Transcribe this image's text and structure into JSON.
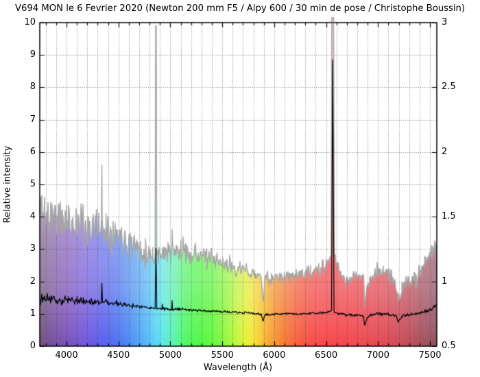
{
  "chart_data": {
    "type": "line",
    "title": "V694 MON le 6 Fevrier 2020 (Newton 200 mm F5 / Alpy 600 / 30 min de pose / Christophe Boussin)",
    "xlabel": "Wavelength (Å)",
    "ylabel_left": "Relative intensity",
    "x_range": [
      3742,
      7566
    ],
    "y_left_range": [
      0,
      10
    ],
    "y_right_range": [
      0.5,
      3
    ],
    "x_major_ticks": [
      4000,
      4500,
      5000,
      5500,
      6000,
      6500,
      7000,
      7500
    ],
    "x_minor_tick_step": 100,
    "y_left_ticks": [
      0,
      1,
      2,
      3,
      4,
      5,
      6,
      7,
      8,
      9,
      10
    ],
    "y_right_ticks": [
      0.5,
      1,
      1.5,
      2,
      2.5,
      3
    ],
    "grid": {
      "style": "dotted",
      "vertical_step_angstrom": 100,
      "horizontal_step_left_units": 1,
      "color": "#555555"
    },
    "emission_lines_angstrom": {
      "H_gamma": 4340,
      "H_beta": 4861,
      "He_I": 5017,
      "H_alpha": 6563
    },
    "absorption_features_angstrom": {
      "Na_D": 5892,
      "telluric_O2_B_band": 6870,
      "telluric_H2O": 7195
    },
    "noise_seed": 11,
    "fade_overlay": {
      "color": "#f3f3f3",
      "top_alpha": 0.72,
      "mid_alpha": 0.5,
      "bottom_alpha": 0.0
    },
    "rainbow_fill_stops": [
      [
        3742,
        "#6e4e79"
      ],
      [
        3850,
        "#74509a"
      ],
      [
        3950,
        "#784fb0"
      ],
      [
        4050,
        "#7950c4"
      ],
      [
        4150,
        "#7354d8"
      ],
      [
        4250,
        "#6659e6"
      ],
      [
        4350,
        "#585fee"
      ],
      [
        4450,
        "#4f6af2"
      ],
      [
        4550,
        "#4a7ef4"
      ],
      [
        4650,
        "#4c96f6"
      ],
      [
        4750,
        "#52b2f8"
      ],
      [
        4850,
        "#58d2f8"
      ],
      [
        4920,
        "#5ae8ea"
      ],
      [
        5000,
        "#58f2c2"
      ],
      [
        5080,
        "#54f88c"
      ],
      [
        5160,
        "#4ff85e"
      ],
      [
        5280,
        "#52f844"
      ],
      [
        5400,
        "#62f83e"
      ],
      [
        5520,
        "#8cf83c"
      ],
      [
        5620,
        "#baf83a"
      ],
      [
        5720,
        "#e4f438"
      ],
      [
        5800,
        "#f8e434"
      ],
      [
        5880,
        "#f8c430"
      ],
      [
        5960,
        "#f8a430"
      ],
      [
        6060,
        "#f8842f"
      ],
      [
        6160,
        "#f86c38"
      ],
      [
        6260,
        "#f85840"
      ],
      [
        6360,
        "#f84c46"
      ],
      [
        6500,
        "#f8464a"
      ],
      [
        6700,
        "#f4464c"
      ],
      [
        6900,
        "#ec4850"
      ],
      [
        7100,
        "#de4954"
      ],
      [
        7250,
        "#c84b58"
      ],
      [
        7400,
        "#ac4e5c"
      ],
      [
        7500,
        "#9a5060"
      ],
      [
        7566,
        "#8e5160"
      ]
    ],
    "series": [
      {
        "name": "flux-colored-spectrum-gray",
        "axis": "left",
        "line_color": "#a6a6a6",
        "fill": "spectrum-rainbow",
        "anchors": [
          [
            3742,
            4.0
          ],
          [
            3760,
            4.4
          ],
          [
            3790,
            4.1
          ],
          [
            3830,
            3.95
          ],
          [
            3870,
            4.1
          ],
          [
            3910,
            3.95
          ],
          [
            3960,
            3.8
          ],
          [
            4000,
            3.9
          ],
          [
            4050,
            3.85
          ],
          [
            4101,
            3.75
          ],
          [
            4150,
            3.8
          ],
          [
            4200,
            3.7
          ],
          [
            4250,
            3.75
          ],
          [
            4300,
            3.7
          ],
          [
            4336,
            3.75
          ],
          [
            4340,
            5.45
          ],
          [
            4344,
            3.75
          ],
          [
            4380,
            3.65
          ],
          [
            4430,
            3.6
          ],
          [
            4471,
            3.5
          ],
          [
            4520,
            3.45
          ],
          [
            4570,
            3.35
          ],
          [
            4620,
            3.25
          ],
          [
            4670,
            3.1
          ],
          [
            4713,
            3.0
          ],
          [
            4760,
            2.9
          ],
          [
            4800,
            2.85
          ],
          [
            4830,
            2.82
          ],
          [
            4853,
            2.8
          ],
          [
            4858,
            9.9
          ],
          [
            4864,
            9.9
          ],
          [
            4869,
            2.8
          ],
          [
            4890,
            2.85
          ],
          [
            4922,
            3.0
          ],
          [
            4950,
            2.9
          ],
          [
            5000,
            2.9
          ],
          [
            5013,
            2.9
          ],
          [
            5017,
            3.55
          ],
          [
            5021,
            2.9
          ],
          [
            5060,
            2.95
          ],
          [
            5100,
            2.95
          ],
          [
            5150,
            2.9
          ],
          [
            5200,
            2.88
          ],
          [
            5250,
            2.85
          ],
          [
            5300,
            2.8
          ],
          [
            5350,
            2.75
          ],
          [
            5400,
            2.68
          ],
          [
            5450,
            2.6
          ],
          [
            5500,
            2.55
          ],
          [
            5550,
            2.5
          ],
          [
            5600,
            2.45
          ],
          [
            5650,
            2.4
          ],
          [
            5700,
            2.35
          ],
          [
            5750,
            2.3
          ],
          [
            5800,
            2.25
          ],
          [
            5840,
            2.2
          ],
          [
            5875,
            2.15
          ],
          [
            5892,
            1.4
          ],
          [
            5910,
            2.05
          ],
          [
            5950,
            2.05
          ],
          [
            6000,
            2.1
          ],
          [
            6050,
            2.1
          ],
          [
            6100,
            2.15
          ],
          [
            6150,
            2.18
          ],
          [
            6200,
            2.2
          ],
          [
            6250,
            2.22
          ],
          [
            6300,
            2.25
          ],
          [
            6350,
            2.28
          ],
          [
            6400,
            2.3
          ],
          [
            6450,
            2.35
          ],
          [
            6490,
            2.45
          ],
          [
            6520,
            2.6
          ],
          [
            6548,
            2.8
          ],
          [
            6554,
            10.15
          ],
          [
            6572,
            10.15
          ],
          [
            6580,
            2.8
          ],
          [
            6620,
            2.4
          ],
          [
            6660,
            2.15
          ],
          [
            6700,
            2.05
          ],
          [
            6740,
            2.1
          ],
          [
            6790,
            2.15
          ],
          [
            6830,
            2.2
          ],
          [
            6860,
            2.15
          ],
          [
            6871,
            1.25
          ],
          [
            6890,
            1.75
          ],
          [
            6915,
            2.05
          ],
          [
            6950,
            2.1
          ],
          [
            7000,
            2.3
          ],
          [
            7050,
            2.4
          ],
          [
            7100,
            2.25
          ],
          [
            7140,
            2.1
          ],
          [
            7165,
            2.0
          ],
          [
            7195,
            1.35
          ],
          [
            7230,
            1.75
          ],
          [
            7260,
            1.95
          ],
          [
            7300,
            1.9
          ],
          [
            7350,
            2.1
          ],
          [
            7400,
            2.35
          ],
          [
            7450,
            2.6
          ],
          [
            7500,
            2.8
          ],
          [
            7535,
            3.0
          ],
          [
            7566,
            3.1
          ]
        ],
        "noise_amplitude_anchors": [
          [
            3742,
            0.7
          ],
          [
            3800,
            0.6
          ],
          [
            3900,
            0.55
          ],
          [
            4100,
            0.5
          ],
          [
            4300,
            0.45
          ],
          [
            4500,
            0.4
          ],
          [
            4700,
            0.3
          ],
          [
            4845,
            0.25
          ],
          [
            4853,
            0.02
          ],
          [
            4869,
            0.02
          ],
          [
            4877,
            0.25
          ],
          [
            4950,
            0.28
          ],
          [
            5100,
            0.25
          ],
          [
            5300,
            0.22
          ],
          [
            5500,
            0.2
          ],
          [
            5700,
            0.18
          ],
          [
            5870,
            0.1
          ],
          [
            5892,
            0.06
          ],
          [
            5915,
            0.15
          ],
          [
            6100,
            0.15
          ],
          [
            6300,
            0.16
          ],
          [
            6480,
            0.18
          ],
          [
            6543,
            0.03
          ],
          [
            6583,
            0.03
          ],
          [
            6600,
            0.2
          ],
          [
            6700,
            0.18
          ],
          [
            6860,
            0.08
          ],
          [
            6900,
            0.15
          ],
          [
            7000,
            0.2
          ],
          [
            7100,
            0.22
          ],
          [
            7170,
            0.1
          ],
          [
            7240,
            0.18
          ],
          [
            7350,
            0.22
          ],
          [
            7450,
            0.2
          ],
          [
            7566,
            0.18
          ]
        ]
      },
      {
        "name": "normalized-spectrum-black",
        "axis": "left",
        "line_color": "#000000",
        "fill": "none",
        "anchors": [
          [
            3742,
            1.5
          ],
          [
            3780,
            1.42
          ],
          [
            3850,
            1.45
          ],
          [
            3900,
            1.42
          ],
          [
            3960,
            1.4
          ],
          [
            4000,
            1.45
          ],
          [
            4060,
            1.42
          ],
          [
            4097,
            1.4
          ],
          [
            4101,
            1.58
          ],
          [
            4105,
            1.4
          ],
          [
            4160,
            1.4
          ],
          [
            4220,
            1.38
          ],
          [
            4280,
            1.36
          ],
          [
            4335,
            1.33
          ],
          [
            4340,
            1.95
          ],
          [
            4346,
            1.33
          ],
          [
            4400,
            1.36
          ],
          [
            4460,
            1.32
          ],
          [
            4520,
            1.3
          ],
          [
            4580,
            1.27
          ],
          [
            4640,
            1.24
          ],
          [
            4700,
            1.22
          ],
          [
            4760,
            1.2
          ],
          [
            4810,
            1.18
          ],
          [
            4853,
            1.17
          ],
          [
            4861,
            3.02
          ],
          [
            4869,
            1.16
          ],
          [
            4900,
            1.17
          ],
          [
            4918,
            1.15
          ],
          [
            4922,
            1.3
          ],
          [
            4926,
            1.15
          ],
          [
            4970,
            1.15
          ],
          [
            5013,
            1.14
          ],
          [
            5017,
            1.4
          ],
          [
            5021,
            1.14
          ],
          [
            5080,
            1.15
          ],
          [
            5150,
            1.14
          ],
          [
            5220,
            1.12
          ],
          [
            5290,
            1.1
          ],
          [
            5360,
            1.09
          ],
          [
            5430,
            1.08
          ],
          [
            5500,
            1.07
          ],
          [
            5570,
            1.05
          ],
          [
            5640,
            1.04
          ],
          [
            5710,
            1.03
          ],
          [
            5780,
            1.02
          ],
          [
            5840,
            1.0
          ],
          [
            5875,
            0.98
          ],
          [
            5892,
            0.78
          ],
          [
            5912,
            0.97
          ],
          [
            5960,
            0.98
          ],
          [
            6030,
            0.99
          ],
          [
            6100,
            1.0
          ],
          [
            6180,
            1.0
          ],
          [
            6260,
            1.0
          ],
          [
            6340,
            1.01
          ],
          [
            6420,
            1.02
          ],
          [
            6480,
            1.03
          ],
          [
            6520,
            1.05
          ],
          [
            6552,
            1.1
          ],
          [
            6563,
            8.85
          ],
          [
            6576,
            1.05
          ],
          [
            6620,
            1.0
          ],
          [
            6680,
            0.98
          ],
          [
            6740,
            0.97
          ],
          [
            6800,
            0.96
          ],
          [
            6858,
            0.94
          ],
          [
            6871,
            0.64
          ],
          [
            6892,
            0.85
          ],
          [
            6915,
            0.95
          ],
          [
            6960,
            0.97
          ],
          [
            7010,
            1.0
          ],
          [
            7060,
            0.99
          ],
          [
            7110,
            0.97
          ],
          [
            7150,
            0.95
          ],
          [
            7175,
            0.93
          ],
          [
            7195,
            0.76
          ],
          [
            7235,
            0.92
          ],
          [
            7270,
            0.95
          ],
          [
            7320,
            0.98
          ],
          [
            7370,
            1.0
          ],
          [
            7420,
            1.04
          ],
          [
            7470,
            1.08
          ],
          [
            7520,
            1.13
          ],
          [
            7566,
            1.28
          ]
        ],
        "noise_amplitude_anchors": [
          [
            3742,
            0.22
          ],
          [
            3760,
            0.16
          ],
          [
            3800,
            0.12
          ],
          [
            3900,
            0.1
          ],
          [
            4000,
            0.09
          ],
          [
            4200,
            0.08
          ],
          [
            4330,
            0.04
          ],
          [
            4350,
            0.06
          ],
          [
            4500,
            0.06
          ],
          [
            4700,
            0.05
          ],
          [
            4848,
            0.015
          ],
          [
            4874,
            0.015
          ],
          [
            4900,
            0.04
          ],
          [
            5000,
            0.035
          ],
          [
            5200,
            0.03
          ],
          [
            5400,
            0.028
          ],
          [
            5600,
            0.028
          ],
          [
            5800,
            0.025
          ],
          [
            5888,
            0.015
          ],
          [
            5915,
            0.025
          ],
          [
            6100,
            0.025
          ],
          [
            6300,
            0.025
          ],
          [
            6500,
            0.025
          ],
          [
            6545,
            0.01
          ],
          [
            6580,
            0.01
          ],
          [
            6620,
            0.03
          ],
          [
            6800,
            0.03
          ],
          [
            6866,
            0.015
          ],
          [
            6900,
            0.03
          ],
          [
            7000,
            0.035
          ],
          [
            7160,
            0.03
          ],
          [
            7200,
            0.02
          ],
          [
            7250,
            0.035
          ],
          [
            7400,
            0.04
          ],
          [
            7500,
            0.045
          ],
          [
            7566,
            0.05
          ]
        ]
      }
    ]
  }
}
